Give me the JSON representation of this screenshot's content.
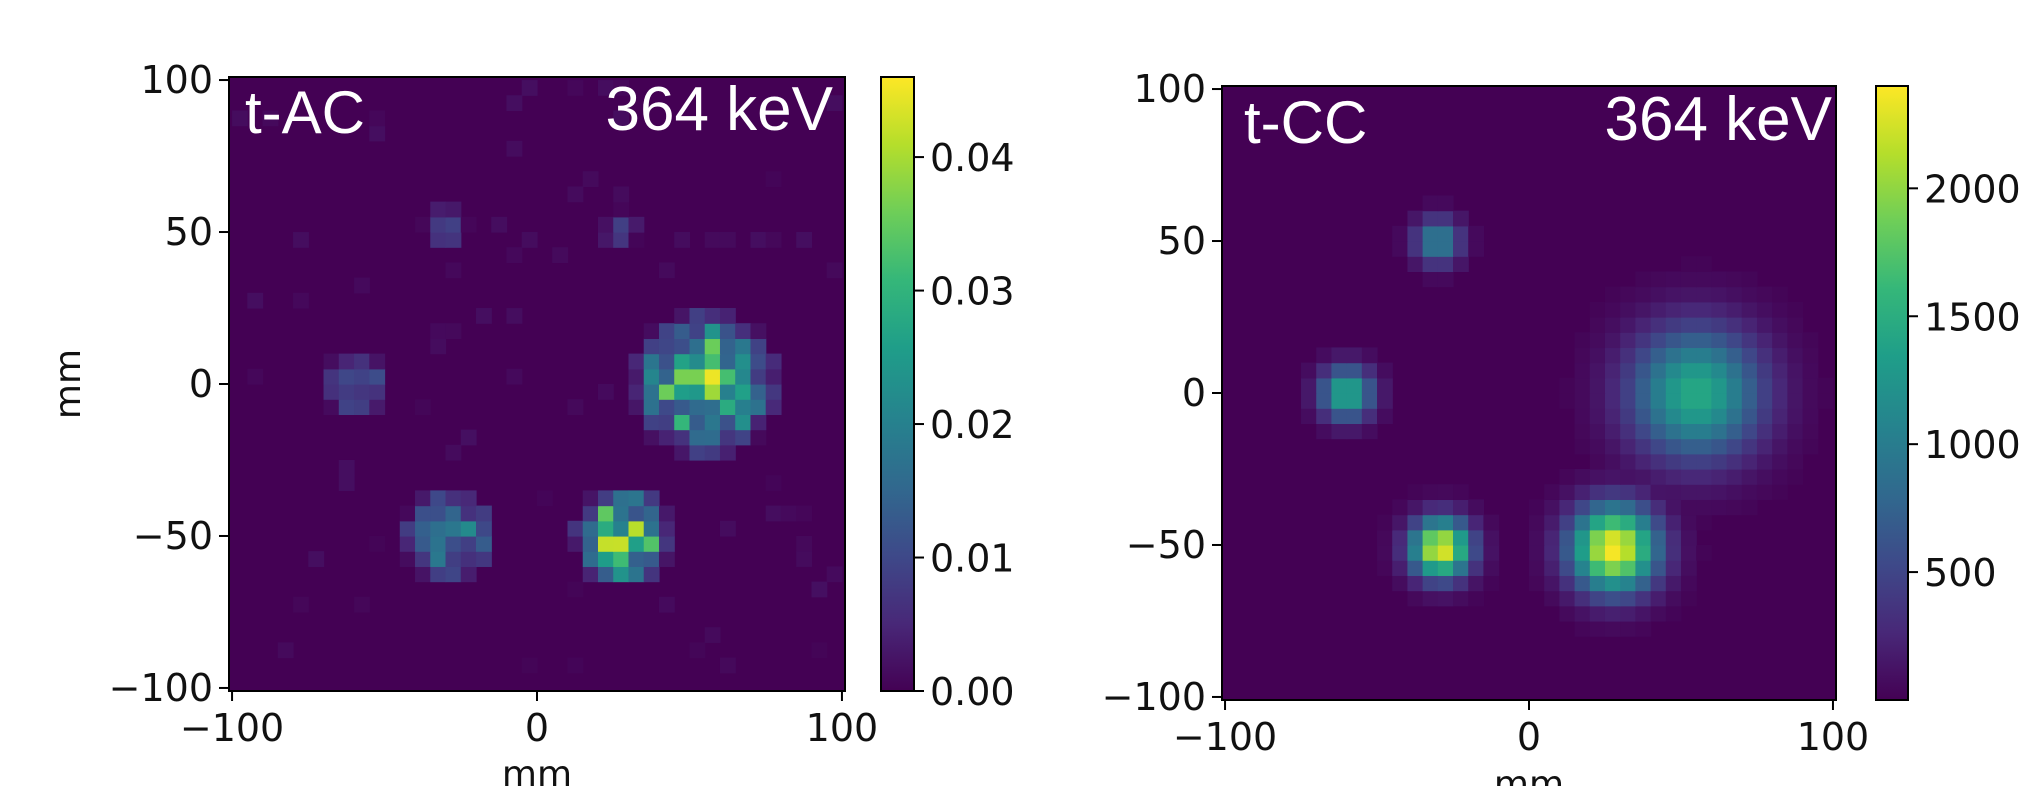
{
  "colors": {
    "background_value": "#440154",
    "colormap": [
      "#440154",
      "#482878",
      "#3e4989",
      "#31688e",
      "#26828e",
      "#1f9e89",
      "#35b779",
      "#6ece58",
      "#b5de2b",
      "#fde725"
    ]
  },
  "chart_data": [
    {
      "type": "heatmap",
      "label_left": "t-AC",
      "label_right": "364 keV",
      "xlabel": "mm",
      "ylabel": "mm",
      "xlim": [
        -101,
        101
      ],
      "ylim": [
        -101,
        101
      ],
      "xticks": [
        -100,
        0,
        100
      ],
      "yticks": [
        -100,
        -50,
        0,
        50,
        100
      ],
      "xtick_labels": [
        "−100",
        "0",
        "100"
      ],
      "ytick_labels": [
        "−100",
        "−50",
        "0",
        "50",
        "100"
      ],
      "colorbar": {
        "min": 0,
        "max": 0.046,
        "ticks": [
          0.0,
          0.01,
          0.02,
          0.03,
          0.04
        ],
        "tick_labels": [
          "0.00",
          "0.01",
          "0.02",
          "0.03",
          "0.04"
        ]
      },
      "grid": false,
      "hot_spots": [
        {
          "x": -60,
          "y": 0,
          "radius_mm": 10,
          "peak": 0.022
        },
        {
          "x": -30,
          "y": 52,
          "radius_mm": 7,
          "peak": 0.012
        },
        {
          "x": 27,
          "y": 51,
          "radius_mm": 6,
          "peak": 0.01
        },
        {
          "x": 55,
          "y": 0,
          "radius_mm": 22,
          "peak": 0.044
        },
        {
          "x": -29,
          "y": -50,
          "radius_mm": 14,
          "peak": 0.028
        },
        {
          "x": 28,
          "y": -50,
          "radius_mm": 15,
          "peak": 0.046
        }
      ]
    },
    {
      "type": "heatmap",
      "label_left": "t-CC",
      "label_right": "364 keV",
      "xlabel": "mm",
      "ylabel": "",
      "xlim": [
        -101,
        101
      ],
      "ylim": [
        -101,
        101
      ],
      "xticks": [
        -100,
        0,
        100
      ],
      "yticks": [
        -100,
        -50,
        0,
        50,
        100
      ],
      "xtick_labels": [
        "−100",
        "0",
        "100"
      ],
      "ytick_labels": [
        "−100",
        "−50",
        "0",
        "50",
        "100"
      ],
      "colorbar": {
        "min": 0,
        "max": 2400,
        "ticks": [
          500,
          1000,
          1500,
          2000
        ],
        "tick_labels": [
          "500",
          "1000",
          "1500",
          "2000"
        ]
      },
      "grid": false,
      "hot_spots": [
        {
          "x": -60,
          "y": 0,
          "radius_mm": 8,
          "peak": 1500
        },
        {
          "x": -30,
          "y": 50,
          "radius_mm": 7,
          "peak": 1100
        },
        {
          "x": 55,
          "y": 0,
          "radius_mm": 20,
          "peak": 1450
        },
        {
          "x": -29,
          "y": -51,
          "radius_mm": 9,
          "peak": 2350
        },
        {
          "x": 28,
          "y": -51,
          "radius_mm": 13,
          "peak": 2400
        }
      ]
    }
  ]
}
